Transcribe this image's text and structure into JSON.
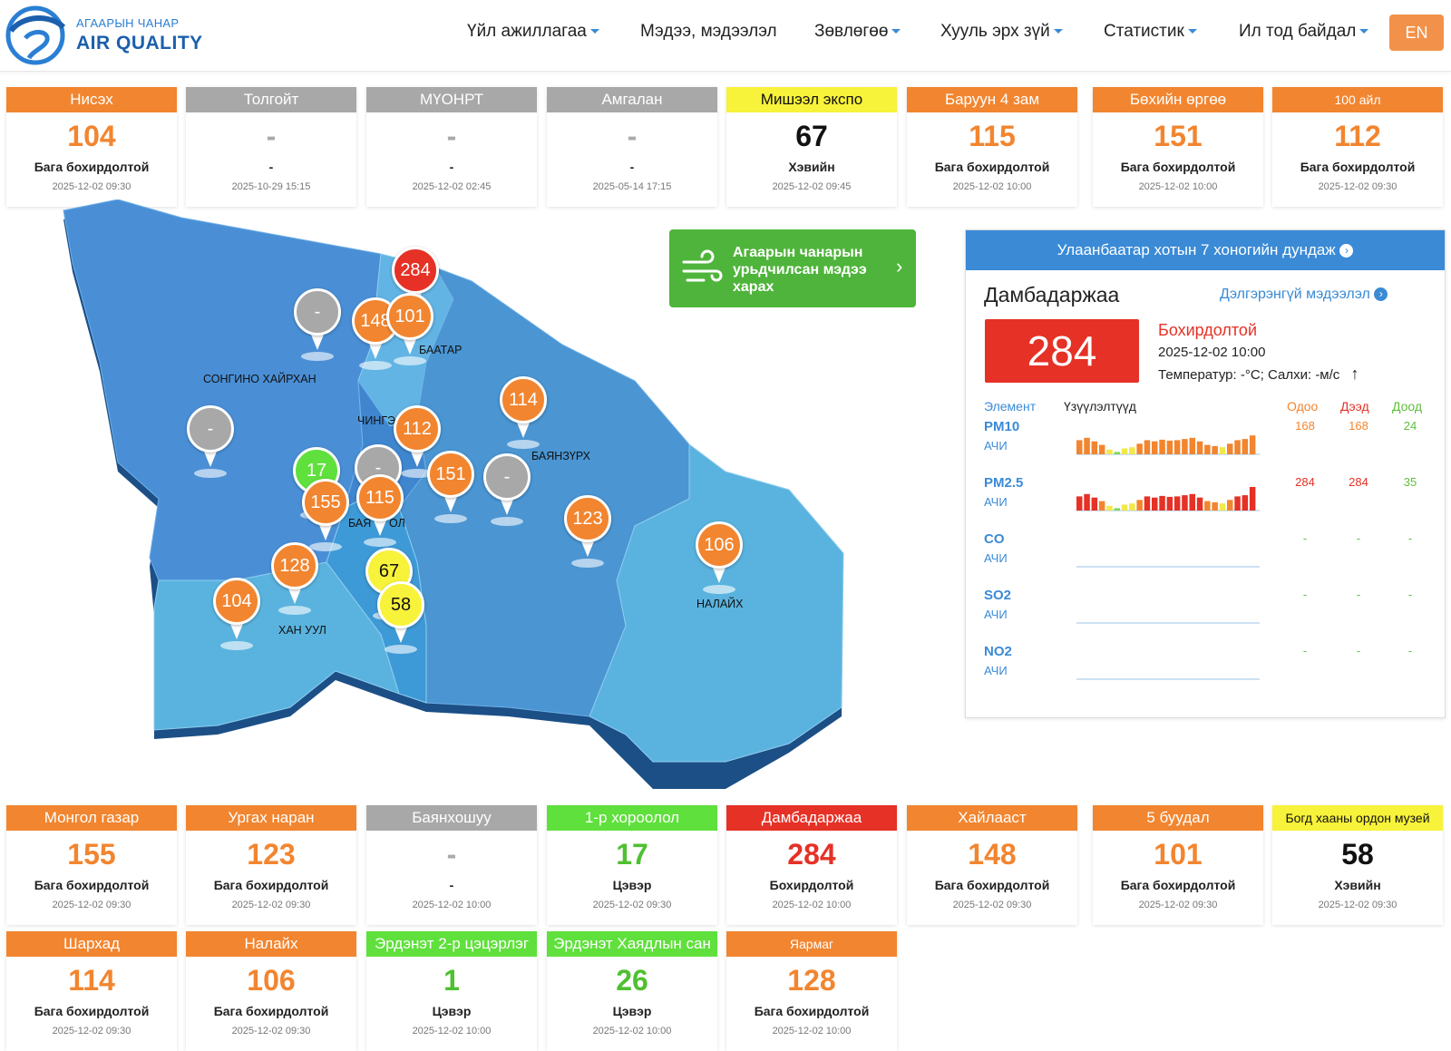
{
  "header": {
    "logo_top": "АГААРЫН ЧАНАР",
    "logo_bottom": "AIR QUALITY",
    "nav": [
      {
        "label": "Үйл ажиллагаа",
        "dropdown": true
      },
      {
        "label": "Мэдээ, мэдээлэл",
        "dropdown": false
      },
      {
        "label": "Зөвлөгөө",
        "dropdown": true
      },
      {
        "label": "Хууль эрх зүй",
        "dropdown": true
      },
      {
        "label": "Статистик",
        "dropdown": true
      },
      {
        "label": "Ил тод байдал",
        "dropdown": true
      }
    ],
    "lang": "EN"
  },
  "colors": {
    "orange": "#f2852f",
    "gray": "#a8a8a8",
    "yellow": "#f7f23a",
    "green": "#5fe03c",
    "red": "#e53126",
    "blue": "#3a8ad6"
  },
  "stations_top": [
    {
      "name": "Нисэх",
      "value": "104",
      "status": "Бага бохирдолтой",
      "time": "2025-12-02 09:30",
      "level": "orange"
    },
    {
      "name": "Толгойт",
      "value": "-",
      "status": "-",
      "time": "2025-10-29 15:15",
      "level": "gray"
    },
    {
      "name": "МҮОНРТ",
      "value": "-",
      "status": "-",
      "time": "2025-12-02 02:45",
      "level": "gray"
    },
    {
      "name": "Амгалан",
      "value": "-",
      "status": "-",
      "time": "2025-05-14 17:15",
      "level": "gray"
    },
    {
      "name": "Мишээл экспо",
      "value": "67",
      "status": "Хэвийн",
      "time": "2025-12-02 09:45",
      "level": "yellow"
    },
    {
      "name": "Баруун 4 зам",
      "value": "115",
      "status": "Бага бохирдолтой",
      "time": "2025-12-02 10:00",
      "level": "orange"
    },
    {
      "name": "Бөхийн өргөө",
      "value": "151",
      "status": "Бага бохирдолтой",
      "time": "2025-12-02 10:00",
      "level": "orange"
    },
    {
      "name": "100 айл",
      "value": "112",
      "status": "Бага бохирдолтой",
      "time": "2025-12-02 09:30",
      "level": "orange",
      "small": true
    }
  ],
  "stations_mid": [
    {
      "name": "Монгол газар",
      "value": "155",
      "status": "Бага бохирдолтой",
      "time": "2025-12-02 09:30",
      "level": "orange"
    },
    {
      "name": "Ургах наран",
      "value": "123",
      "status": "Бага бохирдолтой",
      "time": "2025-12-02 09:30",
      "level": "orange"
    },
    {
      "name": "Баянхошуу",
      "value": "-",
      "status": "-",
      "time": "2025-12-02 10:00",
      "level": "gray"
    },
    {
      "name": "1-р хороолол",
      "value": "17",
      "status": "Цэвэр",
      "time": "2025-12-02 09:30",
      "level": "green"
    },
    {
      "name": "Дамбадаржаа",
      "value": "284",
      "status": "Бохирдолтой",
      "time": "2025-12-02 10:00",
      "level": "red"
    },
    {
      "name": "Хайлааст",
      "value": "148",
      "status": "Бага бохирдолтой",
      "time": "2025-12-02 09:30",
      "level": "orange"
    },
    {
      "name": "5 буудал",
      "value": "101",
      "status": "Бага бохирдолтой",
      "time": "2025-12-02 09:30",
      "level": "orange"
    },
    {
      "name": "Богд хааны ордон музей",
      "value": "58",
      "status": "Хэвийн",
      "time": "2025-12-02 09:30",
      "level": "yellow",
      "small": true
    }
  ],
  "stations_bot": [
    {
      "name": "Шархад",
      "value": "114",
      "status": "Бага бохирдолтой",
      "time": "2025-12-02 09:30",
      "level": "orange"
    },
    {
      "name": "Налайх",
      "value": "106",
      "status": "Бага бохирдолтой",
      "time": "2025-12-02 09:30",
      "level": "orange"
    },
    {
      "name": "Эрдэнэт 2-р цэцэрлэг",
      "value": "1",
      "status": "Цэвэр",
      "time": "2025-12-02 10:00",
      "level": "green"
    },
    {
      "name": "Эрдэнэт Хаядлын сан",
      "value": "26",
      "status": "Цэвэр",
      "time": "2025-12-02 10:00",
      "level": "green"
    },
    {
      "name": "Яармаг",
      "value": "128",
      "status": "Бага бохирдолтой",
      "time": "2025-12-02 10:00",
      "level": "orange",
      "small": true
    }
  ],
  "map": {
    "districts": [
      "СОНГИНО ХАЙРХАН",
      "ЧИНГЭ",
      "БАЯНЗҮРХ",
      "ХАН УУЛ",
      "БАЯ",
      "ОЛ",
      "НАЛАЙХ",
      "БААТАР"
    ],
    "pins": [
      {
        "value": "284",
        "level": "red"
      },
      {
        "value": "-",
        "level": "gray"
      },
      {
        "value": "148",
        "level": "orange"
      },
      {
        "value": "101",
        "level": "orange"
      },
      {
        "value": "114",
        "level": "orange"
      },
      {
        "value": "-",
        "level": "gray"
      },
      {
        "value": "112",
        "level": "orange"
      },
      {
        "value": "17",
        "level": "green"
      },
      {
        "value": "-",
        "level": "gray"
      },
      {
        "value": "155",
        "level": "orange"
      },
      {
        "value": "115",
        "level": "orange"
      },
      {
        "value": "151",
        "level": "orange"
      },
      {
        "value": "-",
        "level": "gray"
      },
      {
        "value": "123",
        "level": "orange"
      },
      {
        "value": "106",
        "level": "orange"
      },
      {
        "value": "128",
        "level": "orange"
      },
      {
        "value": "67",
        "level": "yellow"
      },
      {
        "value": "104",
        "level": "orange"
      },
      {
        "value": "58",
        "level": "yellow"
      }
    ]
  },
  "forecast": {
    "label": "Агаарын чанарын урьдчилсан мэдээ харах",
    "icon": "wind-icon"
  },
  "panel": {
    "header": "Улаанбаатар хотын 7 хоногийн дундаж",
    "station": "Дамбадаржаа",
    "more": "Дэлгэрэнгүй мэдээлэл",
    "aqi": "284",
    "level": "Бохирдолтой",
    "datetime": "2025-12-02 10:00",
    "weather": "Температур:  -°C; Салхи:  -м/с",
    "columns": {
      "element": "Элемент",
      "indicators": "Үзүүлэлтүүд",
      "now": "Одоо",
      "high": "Дээд",
      "low": "Доод"
    },
    "elements": [
      {
        "name": "PM10",
        "unit": "АЧИ",
        "now": "168",
        "high": "168",
        "low": "24",
        "bars": [
          60,
          70,
          55,
          40,
          20,
          10,
          25,
          30,
          45,
          60,
          55,
          62,
          58,
          60,
          65,
          70,
          55,
          40,
          35,
          30,
          45,
          60,
          65,
          80
        ]
      },
      {
        "name": "PM2.5",
        "unit": "АЧИ",
        "now": "284",
        "high": "284",
        "low": "35",
        "bars": [
          60,
          70,
          55,
          40,
          20,
          10,
          25,
          30,
          45,
          60,
          55,
          62,
          58,
          60,
          65,
          70,
          55,
          40,
          35,
          30,
          45,
          60,
          65,
          100
        ]
      },
      {
        "name": "CO",
        "unit": "АЧИ",
        "now": "-",
        "high": "-",
        "low": "-",
        "bars": []
      },
      {
        "name": "SO2",
        "unit": "АЧИ",
        "now": "-",
        "high": "-",
        "low": "-",
        "bars": []
      },
      {
        "name": "NO2",
        "unit": "АЧИ",
        "now": "-",
        "high": "-",
        "low": "-",
        "bars": []
      }
    ]
  }
}
